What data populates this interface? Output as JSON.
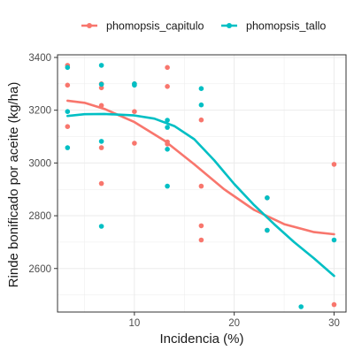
{
  "chart_data": {
    "type": "scatter",
    "xlabel": "Incidencia (%)",
    "ylabel": "Rinde bonificado por aceite (kg/ha)",
    "xlim": [
      2.3,
      31.2
    ],
    "ylim": [
      2435,
      3410
    ],
    "x_ticks": [
      10,
      20,
      30
    ],
    "y_ticks": [
      2600,
      2800,
      3000,
      3200,
      3400
    ],
    "grid": true,
    "legend_position": "top",
    "series": [
      {
        "name": "phomopsis_capitulo",
        "color": "#F8766D",
        "points": [
          [
            3.3,
            3370
          ],
          [
            3.3,
            3295
          ],
          [
            3.3,
            3138
          ],
          [
            6.7,
            3300
          ],
          [
            6.7,
            3285
          ],
          [
            6.7,
            3218
          ],
          [
            6.7,
            3058
          ],
          [
            6.7,
            2922
          ],
          [
            10,
            3300
          ],
          [
            10,
            3195
          ],
          [
            10,
            3075
          ],
          [
            13.3,
            3362
          ],
          [
            13.3,
            3290
          ],
          [
            13.3,
            3080
          ],
          [
            13.3,
            3072
          ],
          [
            16.7,
            3163
          ],
          [
            16.7,
            2912
          ],
          [
            16.7,
            2762
          ],
          [
            16.7,
            2708
          ],
          [
            23.3,
            2868
          ],
          [
            23.3,
            2745
          ],
          [
            30,
            2995
          ],
          [
            30,
            2463
          ]
        ],
        "smooth": [
          [
            3.3,
            3236
          ],
          [
            5,
            3228
          ],
          [
            7,
            3205
          ],
          [
            10,
            3155
          ],
          [
            13,
            3085
          ],
          [
            16,
            2995
          ],
          [
            19,
            2900
          ],
          [
            22,
            2822
          ],
          [
            25,
            2768
          ],
          [
            28,
            2738
          ],
          [
            30,
            2730
          ]
        ]
      },
      {
        "name": "phomopsis_tallo",
        "color": "#00BFC4",
        "points": [
          [
            3.3,
            3362
          ],
          [
            3.3,
            3195
          ],
          [
            3.3,
            3058
          ],
          [
            6.7,
            3370
          ],
          [
            6.7,
            3298
          ],
          [
            6.7,
            3082
          ],
          [
            6.7,
            2760
          ],
          [
            10,
            3300
          ],
          [
            10,
            3295
          ],
          [
            13.3,
            3162
          ],
          [
            13.3,
            3135
          ],
          [
            13.3,
            3052
          ],
          [
            13.3,
            2912
          ],
          [
            16.7,
            3282
          ],
          [
            16.7,
            3220
          ],
          [
            23.3,
            2868
          ],
          [
            23.3,
            2745
          ],
          [
            26.7,
            2455
          ],
          [
            30,
            2708
          ]
        ],
        "smooth": [
          [
            3.3,
            3178
          ],
          [
            5,
            3185
          ],
          [
            7,
            3186
          ],
          [
            10,
            3180
          ],
          [
            12,
            3168
          ],
          [
            14,
            3140
          ],
          [
            16,
            3090
          ],
          [
            18,
            3010
          ],
          [
            20,
            2920
          ],
          [
            22,
            2840
          ],
          [
            24,
            2768
          ],
          [
            26,
            2700
          ],
          [
            28,
            2638
          ],
          [
            30,
            2572
          ]
        ]
      }
    ]
  }
}
